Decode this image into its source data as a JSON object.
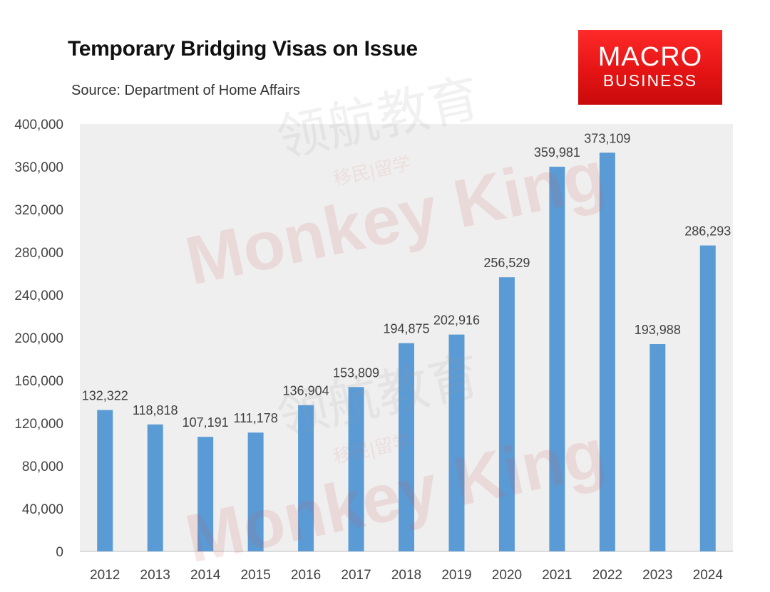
{
  "title": "Temporary Bridging Visas on Issue",
  "subtitle": "Source: Department of Home Affairs",
  "logo": {
    "line1": "MACRO",
    "line2": "BUSINESS"
  },
  "watermark": {
    "cn1": "领航教育",
    "cn2": "移民|留学",
    "en": "Monkey King"
  },
  "colors": {
    "bar": "#5b9bd5",
    "plot_bg": "#efefef",
    "logo": "#e61a1a"
  },
  "chart_data": {
    "type": "bar",
    "title": "Temporary Bridging Visas on Issue",
    "subtitle": "Source: Department of Home Affairs",
    "categories": [
      "2012",
      "2013",
      "2014",
      "2015",
      "2016",
      "2017",
      "2018",
      "2019",
      "2020",
      "2021",
      "2022",
      "2023",
      "2024"
    ],
    "values": [
      132322,
      118818,
      107191,
      111178,
      136904,
      153809,
      194875,
      202916,
      256529,
      359981,
      373109,
      193988,
      286293
    ],
    "value_labels": [
      "132,322",
      "118,818",
      "107,191",
      "111,178",
      "136,904",
      "153,809",
      "194,875",
      "202,916",
      "256,529",
      "359,981",
      "373,109",
      "193,988",
      "286,293"
    ],
    "ylim": [
      0,
      400000
    ],
    "yticks": [
      0,
      40000,
      80000,
      120000,
      160000,
      200000,
      240000,
      280000,
      320000,
      360000,
      400000
    ],
    "ytick_labels": [
      "0",
      "40,000",
      "80,000",
      "120,000",
      "160,000",
      "200,000",
      "240,000",
      "280,000",
      "320,000",
      "360,000",
      "400,000"
    ],
    "xlabel": "",
    "ylabel": "",
    "grid": false,
    "legend": "none"
  }
}
